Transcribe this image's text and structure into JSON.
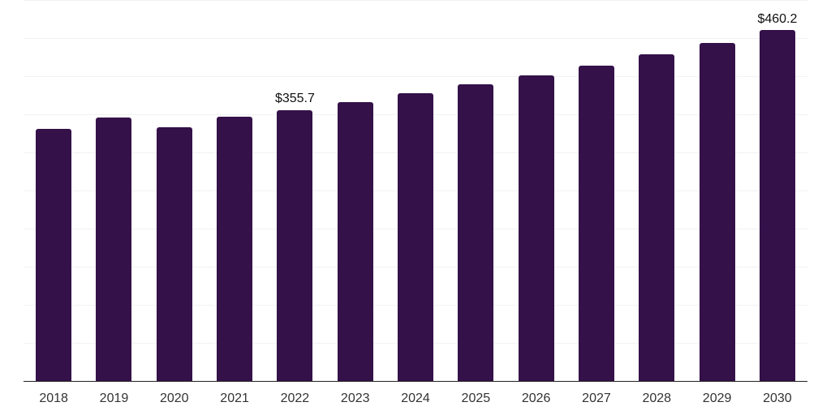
{
  "chart_data": {
    "type": "bar",
    "title": "",
    "xlabel": "",
    "ylabel": "",
    "categories": [
      "2018",
      "2019",
      "2020",
      "2021",
      "2022",
      "2023",
      "2024",
      "2025",
      "2026",
      "2027",
      "2028",
      "2029",
      "2030"
    ],
    "values": [
      330.4,
      346.1,
      333.3,
      347.1,
      355.7,
      365.6,
      377.7,
      389.0,
      401.4,
      414.2,
      428.4,
      443.9,
      460.2
    ],
    "data_labels": {
      "2022": "$355.7",
      "2030": "$460.2"
    },
    "ylim": [
      0,
      500
    ],
    "gridline_interval": 50,
    "grid_on": true,
    "legend_position": "none",
    "colors": {
      "bar": "#341149",
      "gridline": "#f2f2f2",
      "axis_line": "#222222",
      "tick_label": "#333333",
      "data_label": "#111111",
      "background": "#ffffff"
    }
  }
}
